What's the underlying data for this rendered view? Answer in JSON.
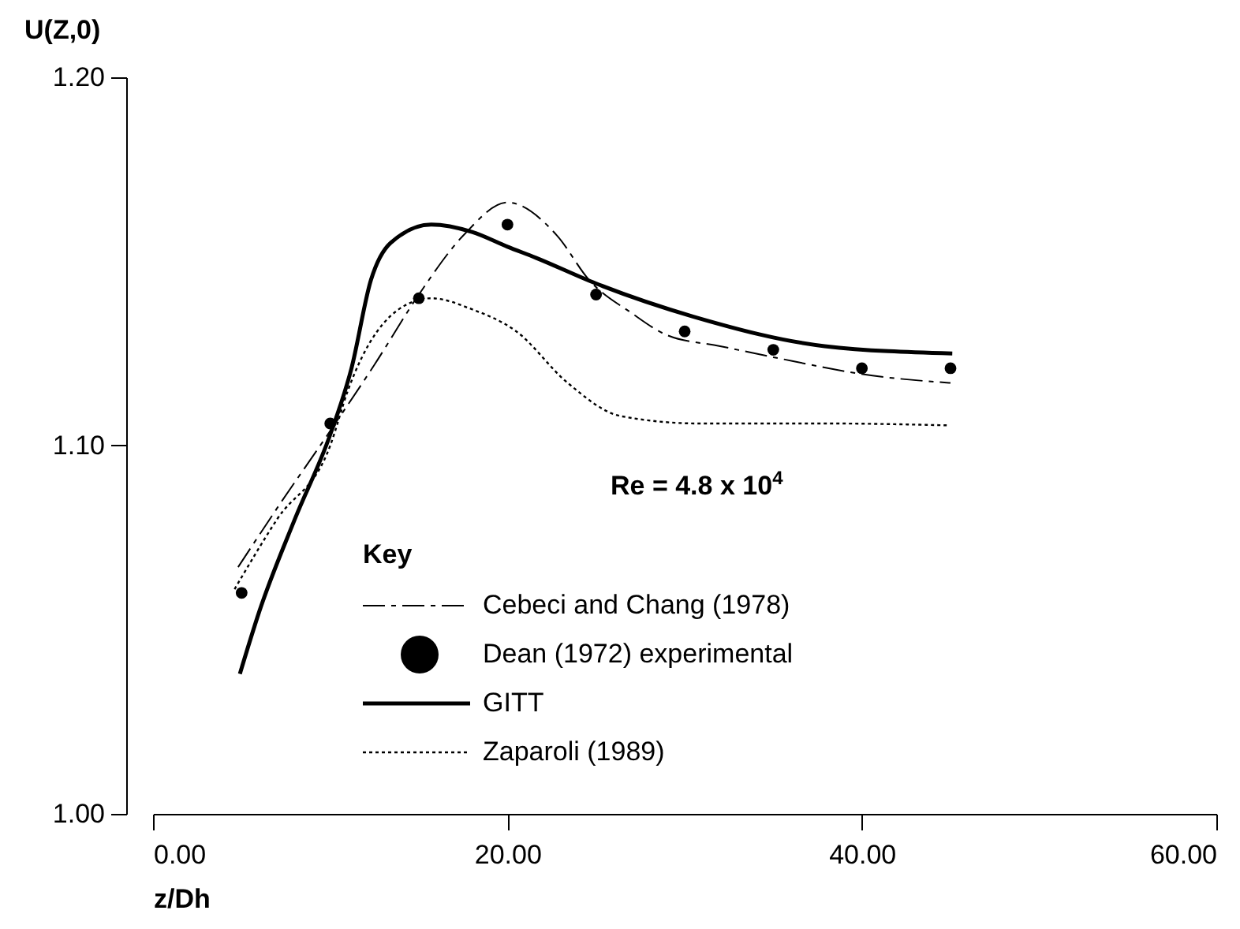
{
  "chart_data": {
    "type": "line",
    "xlabel": "z/Dh",
    "ylabel": "U(Z,0)",
    "legend_title": "Key",
    "xlim": [
      0,
      60
    ],
    "ylim": [
      1.0,
      1.2
    ],
    "xticks": [
      {
        "value": 0,
        "label": "0.00"
      },
      {
        "value": 20,
        "label": "20.00"
      },
      {
        "value": 40,
        "label": "40.00"
      },
      {
        "value": 60,
        "label": "60.00"
      }
    ],
    "yticks": [
      {
        "value": 1.0,
        "label": "1.00"
      },
      {
        "value": 1.1,
        "label": "1.10"
      },
      {
        "value": 1.2,
        "label": "1.20"
      }
    ],
    "grid": false,
    "legend": "bottom",
    "annotations": [
      "Re = 4.8 x 10$^{4}$"
    ],
    "series": [
      {
        "name": "Cebeci and Chang (1978)",
        "line_style": "dashed",
        "color": "#000000",
        "x": [
          4.8,
          7,
          10,
          12.5,
          15,
          17.5,
          20,
          22.8,
          24.6,
          27,
          29,
          32,
          35,
          40.6,
          45
        ],
        "values": [
          1.067,
          1.083,
          1.104,
          1.122,
          1.141,
          1.157,
          1.166,
          1.157,
          1.145,
          1.136,
          1.13,
          1.127,
          1.124,
          1.119,
          1.117
        ]
      },
      {
        "name": "Dean (1972) experimental",
        "type": "scatter",
        "marker": "circle",
        "color": "#000000",
        "x": [
          5,
          10,
          15,
          20,
          25,
          30,
          35,
          40,
          45
        ],
        "values": [
          1.06,
          1.106,
          1.14,
          1.16,
          1.141,
          1.131,
          1.126,
          1.121,
          1.121
        ]
      },
      {
        "name": "GITT",
        "line_style": "solid",
        "color": "#000000",
        "x": [
          4.9,
          6,
          8,
          10,
          11.2,
          12.3,
          13.4,
          15.7,
          18,
          20,
          21.6,
          25,
          30.5,
          37.9,
          45.1
        ],
        "values": [
          1.038,
          1.055,
          1.08,
          1.103,
          1.121,
          1.145,
          1.155,
          1.16,
          1.158,
          1.154,
          1.151,
          1.144,
          1.135,
          1.127,
          1.125
        ]
      },
      {
        "name": "Zaparoli (1989)",
        "line_style": "dotted",
        "color": "#000000",
        "x": [
          4.6,
          7,
          10,
          11,
          14.2,
          15.7,
          18,
          20.5,
          23.4,
          26.4,
          30.8,
          38,
          44.8
        ],
        "values": [
          1.061,
          1.08,
          1.1,
          1.115,
          1.138,
          1.14,
          1.137,
          1.131,
          1.117,
          1.108,
          1.106,
          1.106,
          1.1055
        ]
      }
    ]
  }
}
